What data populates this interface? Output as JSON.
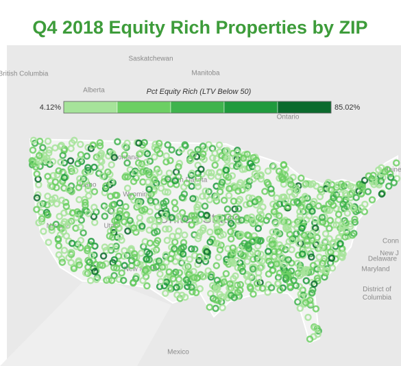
{
  "header": {
    "title": "Q4 2018 Equity Rich Properties by ZIP"
  },
  "legend": {
    "title": "Pct Equity Rich (LTV Below 50)",
    "min": {
      "value": 4.12,
      "label": "4.12%"
    },
    "max": {
      "value": 85.02,
      "label": "85.02%"
    },
    "colors": [
      "#a6e39a",
      "#6ccf63",
      "#3fb34d",
      "#1f9a3d",
      "#0b6a2d"
    ]
  },
  "map_labels": [
    "British Columbia",
    "Alberta",
    "Saskatchewan",
    "Manitoba",
    "Ontario",
    "Montana",
    "South Dakota",
    "Wyoming",
    "Idaho",
    "Nevada",
    "Utah",
    "United States",
    "New Mexico",
    "Mexico",
    "Maine",
    "New J",
    "Conn",
    "Delaware",
    "Maryland",
    "District of Columbia"
  ]
}
